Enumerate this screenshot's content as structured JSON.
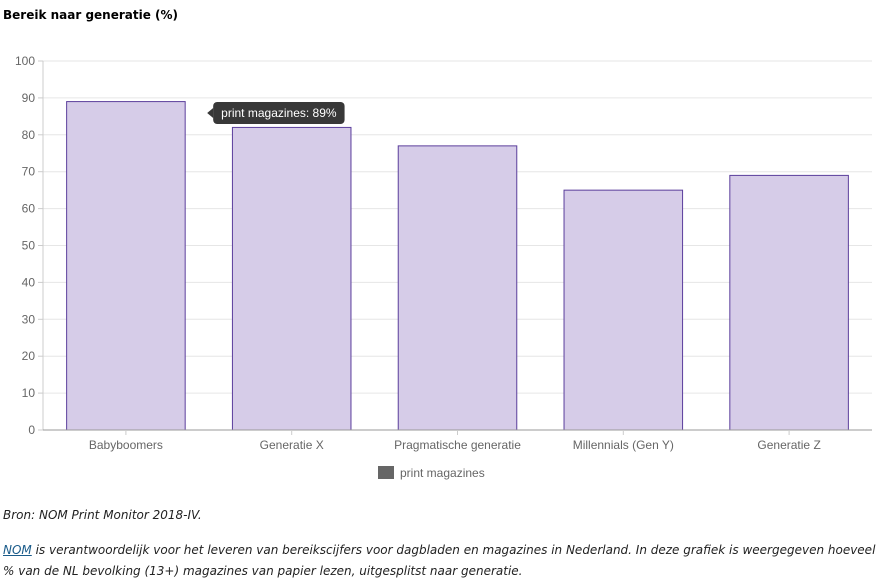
{
  "chart_data": {
    "type": "bar",
    "title": "Bereik naar generatie (%)",
    "categories": [
      "Babyboomers",
      "Generatie X",
      "Pragmatische generatie",
      "Millennials (Gen Y)",
      "Generatie Z"
    ],
    "series": [
      {
        "name": "print magazines",
        "values": [
          89,
          82,
          77,
          65,
          69
        ]
      }
    ],
    "ylim": [
      0,
      100
    ],
    "yticks": [
      0,
      10,
      20,
      30,
      40,
      50,
      60,
      70,
      80,
      90,
      100
    ],
    "grid": true,
    "legend": "bottom",
    "tooltip": {
      "category_index": 0,
      "text": "print magazines: 89%"
    },
    "colors": {
      "bar_fill": "#d6cce8",
      "bar_stroke": "#5b3e9c",
      "legend_swatch": "#666666"
    }
  },
  "footer": {
    "source": "Bron: NOM Print Monitor 2018-IV.",
    "link_text": "NOM",
    "description": " is verantwoordelijk voor het leveren van bereikscijfers voor dagbladen en magazines in Nederland.  In deze grafiek is weergegeven hoeveel % van de NL bevolking (13+) magazines van papier lezen, uitgesplitst naar generatie."
  }
}
